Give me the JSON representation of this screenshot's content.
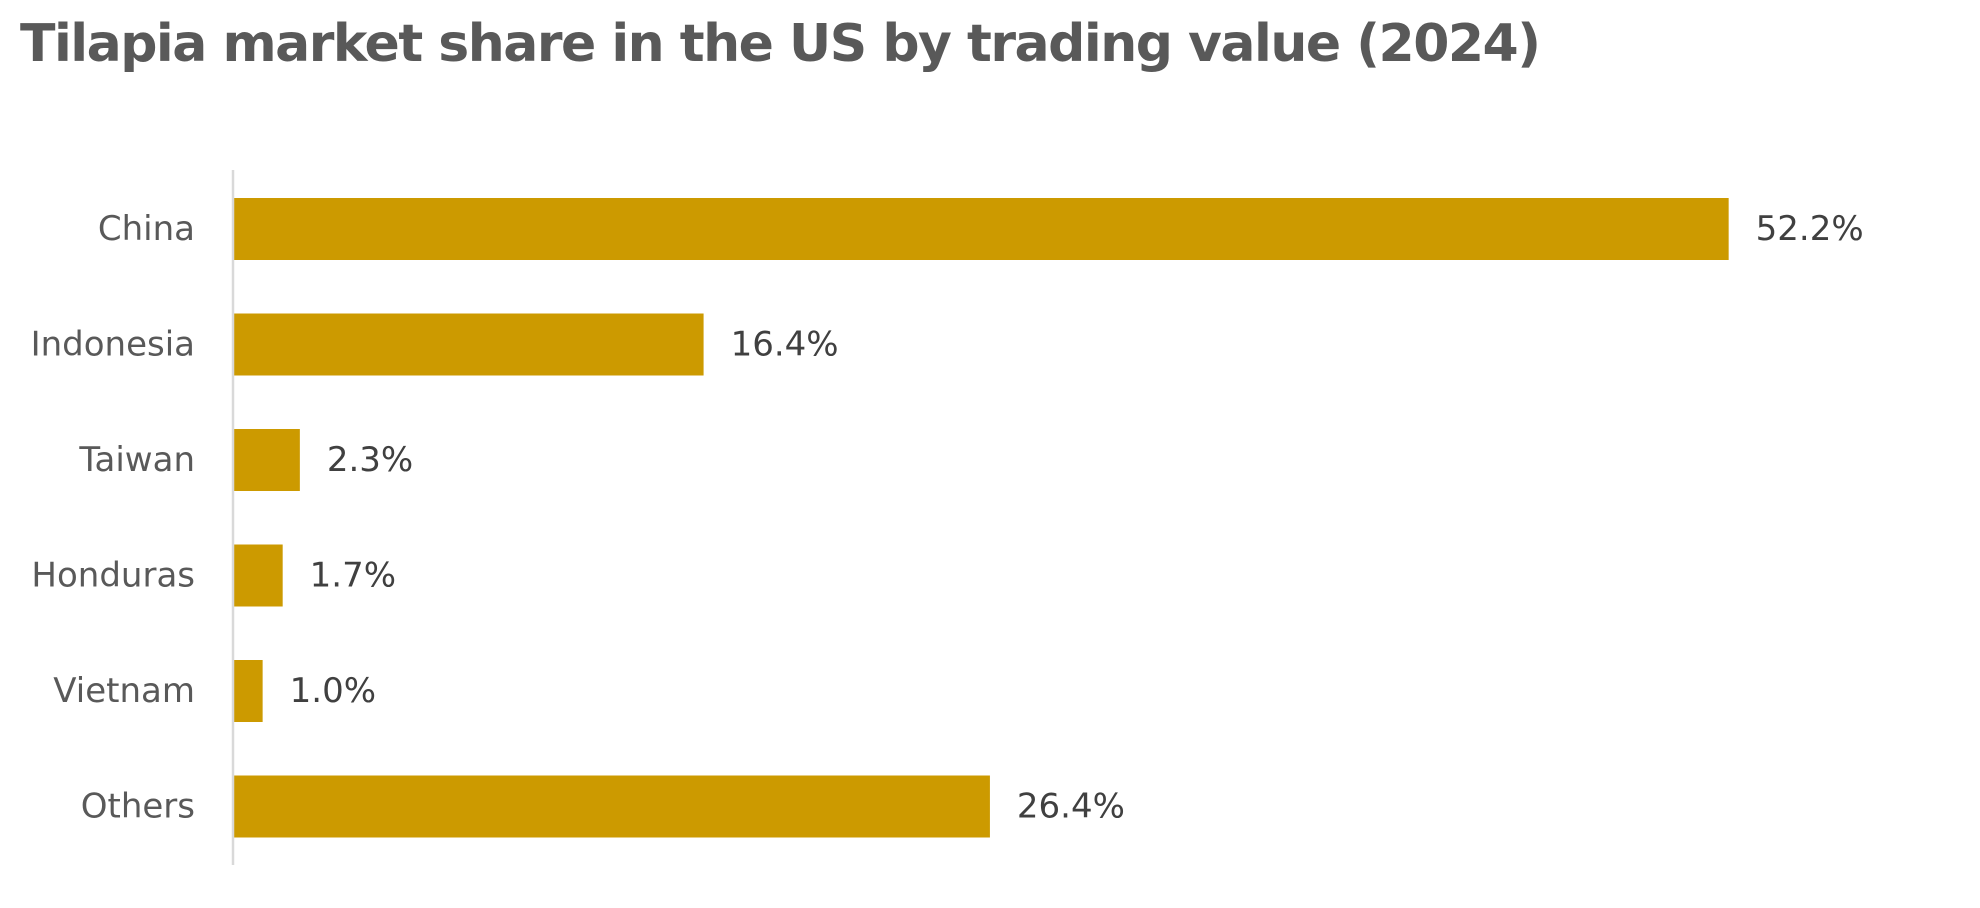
{
  "chart_data": {
    "type": "bar",
    "orientation": "horizontal",
    "title": "Tilapia market share in the US by trading value (2024)",
    "categories": [
      "China",
      "Indonesia",
      "Taiwan",
      "Honduras",
      "Vietnam",
      "Others"
    ],
    "values": [
      52.2,
      16.4,
      2.3,
      1.7,
      1.0,
      26.4
    ],
    "value_labels": [
      "52.2%",
      "16.4%",
      "2.3%",
      "1.7%",
      "1.0%",
      "26.4%"
    ],
    "unit": "%",
    "xlim": [
      0,
      60
    ],
    "grid": false,
    "legend": "none",
    "colors": {
      "bar": "#CC9A00",
      "axis": "#D9D9D9",
      "title": "#595959",
      "label": "#595959",
      "value": "#404040"
    }
  }
}
